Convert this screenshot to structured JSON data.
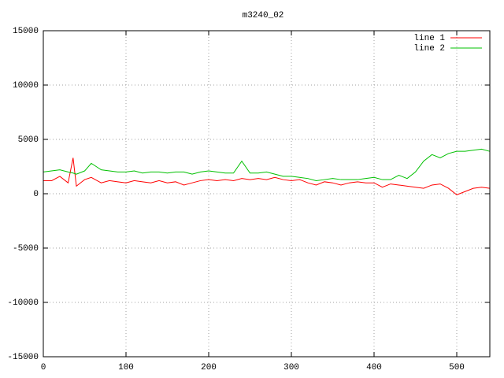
{
  "chart_data": {
    "type": "line",
    "title": "m3240_02",
    "x": [
      0,
      10,
      20,
      30,
      36,
      40,
      50,
      58,
      70,
      80,
      90,
      100,
      110,
      120,
      130,
      140,
      150,
      160,
      170,
      180,
      190,
      200,
      210,
      220,
      230,
      240,
      250,
      260,
      270,
      280,
      290,
      300,
      310,
      320,
      330,
      340,
      350,
      360,
      370,
      380,
      390,
      400,
      410,
      420,
      430,
      440,
      450,
      460,
      470,
      480,
      490,
      500,
      510,
      520,
      530,
      540
    ],
    "series": [
      {
        "name": "line 1",
        "color": "#ff0000",
        "values": [
          1200,
          1200,
          1600,
          1000,
          3300,
          700,
          1300,
          1500,
          1000,
          1200,
          1100,
          1000,
          1200,
          1100,
          1000,
          1200,
          1000,
          1100,
          800,
          1000,
          1200,
          1300,
          1200,
          1300,
          1200,
          1400,
          1300,
          1400,
          1300,
          1500,
          1300,
          1200,
          1300,
          1000,
          800,
          1100,
          1000,
          800,
          1000,
          1100,
          1000,
          1000,
          600,
          900,
          800,
          700,
          600,
          500,
          800,
          900,
          500,
          -100,
          200,
          500,
          600,
          500
        ]
      },
      {
        "name": "line 2",
        "color": "#00c000",
        "values": [
          2000,
          2100,
          2200,
          2000,
          1900,
          1800,
          2100,
          2800,
          2200,
          2100,
          2000,
          2000,
          2100,
          1900,
          2000,
          2000,
          1900,
          2000,
          2000,
          1800,
          2000,
          2100,
          2000,
          1900,
          1900,
          3000,
          1900,
          1900,
          2000,
          1800,
          1600,
          1600,
          1500,
          1400,
          1200,
          1300,
          1400,
          1300,
          1300,
          1300,
          1400,
          1500,
          1300,
          1300,
          1700,
          1400,
          2000,
          3000,
          3600,
          3300,
          3700,
          3900,
          3900,
          4000,
          4100,
          3900
        ]
      }
    ],
    "xlim": [
      0,
      540
    ],
    "xticks": [
      0,
      100,
      200,
      300,
      400,
      500
    ],
    "ylim": [
      -15000,
      15000
    ],
    "yticks": [
      -15000,
      -10000,
      -5000,
      0,
      5000,
      10000,
      15000
    ],
    "grid": true,
    "legend": "top-right"
  }
}
